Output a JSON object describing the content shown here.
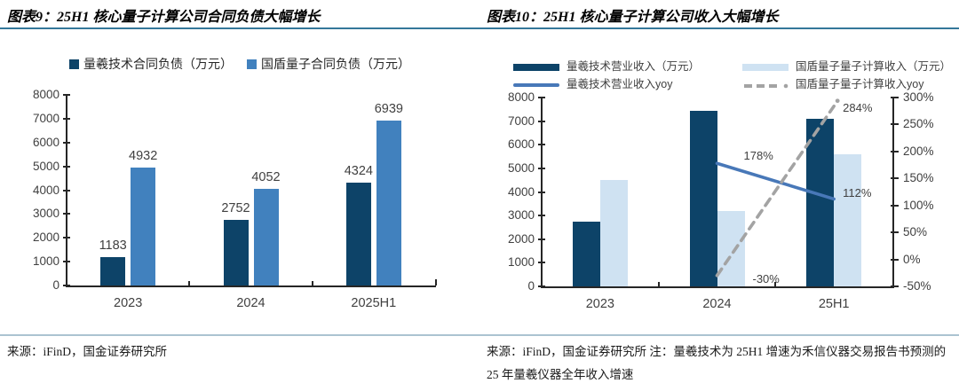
{
  "figure9": {
    "title": "图表9：25H1 核心量子计算公司合同负债大幅增长",
    "source": "来源：iFinD，国金证券研究所"
  },
  "figure10": {
    "title": "图表10：25H1 核心量子计算公司收入大幅增长",
    "source": "来源：iFinD，国金证券研究所 注：量羲技术为 25H1 增速为禾信仪器交易报告书预测的 25 年量羲仪器全年收入增速"
  },
  "colors": {
    "dark_navy_bar": "#0d4368",
    "medium_blue_bar": "#4181be",
    "light_blue_bar": "#cfe2f2",
    "blue_line": "#4878b8",
    "gray_dashed_line": "#a3a3a3",
    "top_rule": "#35789a",
    "bottom_rule": "#abc3d1",
    "axis": "#262626",
    "label_text": "#404040"
  },
  "chart_data": [
    {
      "type": "bar",
      "title": "25H1 核心量子计算公司合同负债大幅增长",
      "categories": [
        "2023",
        "2024",
        "2025H1"
      ],
      "series": [
        {
          "name": "量羲技术合同负债（万元）",
          "color": "#0d4368",
          "values": [
            1183,
            2752,
            4324
          ]
        },
        {
          "name": "国盾量子合同负债（万元）",
          "color": "#4181be",
          "values": [
            4932,
            4052,
            6939
          ]
        }
      ],
      "value_labels": true,
      "ylim": [
        0,
        8000
      ],
      "ytick_step": 1000,
      "grid": false,
      "legend_position": "top"
    },
    {
      "type": "bar+line",
      "title": "25H1 核心量子计算公司收入大幅增长",
      "categories": [
        "2023",
        "2024",
        "25H1"
      ],
      "series": [
        {
          "kind": "bar",
          "axis": "left",
          "name": "量羲技术营业收入（万元）",
          "color": "#0d4368",
          "values": [
            2750,
            7450,
            7100
          ]
        },
        {
          "kind": "bar",
          "axis": "left",
          "name": "国盾量子量子计算收入（万元）",
          "color": "#cfe2f2",
          "values": [
            4500,
            3200,
            5600
          ]
        },
        {
          "kind": "line",
          "axis": "right",
          "name": "量羲技术营业收入yoy",
          "color": "#4878b8",
          "dash": false,
          "points": [
            {
              "category": "2024",
              "value": 178,
              "label": "178%"
            },
            {
              "category": "25H1",
              "value": 112,
              "label": "112%"
            }
          ]
        },
        {
          "kind": "line",
          "axis": "right",
          "name": "国盾量子量子计算收入yoy",
          "color": "#a3a3a3",
          "dash": true,
          "points": [
            {
              "category": "2024",
              "value": -30,
              "label": "-30%"
            },
            {
              "category": "25H1",
              "value": 284,
              "label": "284%"
            }
          ]
        }
      ],
      "ylim_left": [
        0,
        8000
      ],
      "ytick_step_left": 1000,
      "ylim_right": [
        -50,
        300
      ],
      "ytick_step_right": 50,
      "ytick_suffix_right": "%",
      "grid": false,
      "legend_position": "top"
    }
  ]
}
